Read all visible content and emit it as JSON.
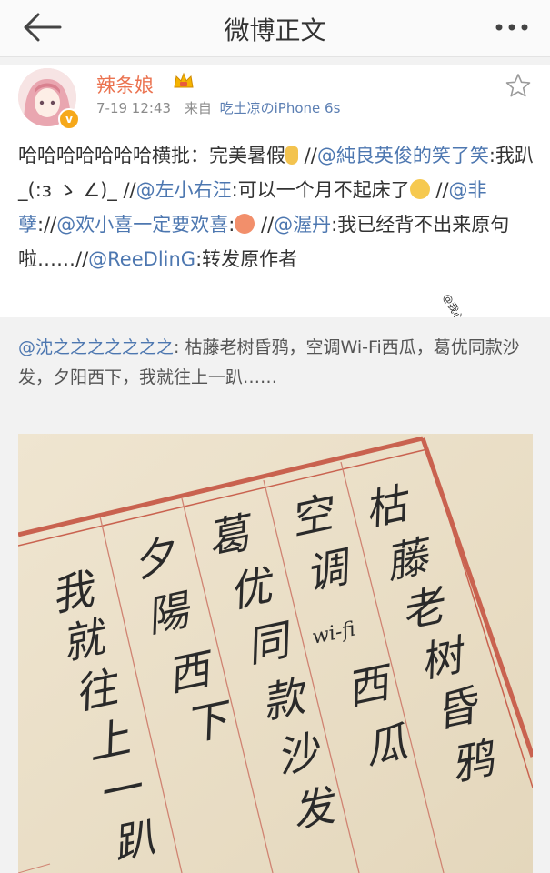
{
  "header": {
    "title": "微博正文"
  },
  "post": {
    "user": "辣条娘",
    "time": "7-19 12:43",
    "from_label": "来自",
    "source": "吃土凉のiPhone 6s",
    "segments": [
      {
        "text": "哈哈哈哈哈哈哈横批：完美暑假",
        "at": false
      },
      {
        "emoji": "thumb"
      },
      {
        "text": " //",
        "at": false
      },
      {
        "text": "@純良英俊的笑了笑",
        "at": true
      },
      {
        "text": ":我趴_(:з ゝ ∠)_ //",
        "at": false
      },
      {
        "text": "@左小右汪",
        "at": true
      },
      {
        "text": ":可以一个月不起床了",
        "at": false
      },
      {
        "emoji": "smile"
      },
      {
        "text": " //",
        "at": false
      },
      {
        "text": "@非孽",
        "at": true
      },
      {
        "text": "://",
        "at": false
      },
      {
        "text": "@欢小喜一定要欢喜",
        "at": true
      },
      {
        "text": ":",
        "at": false
      },
      {
        "emoji": "blush"
      },
      {
        "text": " //",
        "at": false
      },
      {
        "text": "@渥丹",
        "at": true
      },
      {
        "text": ":我已经背不出来原句啦……//",
        "at": false
      },
      {
        "text": "@ReeDlinG",
        "at": true
      },
      {
        "text": ":转发原作者",
        "at": false
      }
    ]
  },
  "watermark": "@我心病狂食乳控~",
  "repost": {
    "author": "@沈之之之之之之之",
    "text": ": 枯藤老树昏鸦，空调Wi-Fi西瓜，葛优同款沙发，夕阳西下，我就往上一趴……"
  },
  "photo": {
    "columns": [
      "枯藤老树昏鸦",
      "空调 wi-fi 西瓜",
      "葛优同款沙发",
      "夕阳西下",
      "我就往上一趴"
    ],
    "column_layout": [
      [
        [
          "枯",
          405,
          578
        ],
        [
          "藤",
          428,
          636
        ],
        [
          "老",
          445,
          690
        ],
        [
          "树",
          466,
          745
        ],
        [
          "昏",
          482,
          800
        ],
        [
          "鸦",
          500,
          858
        ]
      ],
      [
        [
          "空",
          323,
          588
        ],
        [
          "调",
          340,
          648
        ],
        [
          "wi-fi",
          345,
          708
        ],
        [
          "西",
          385,
          775
        ],
        [
          "瓜",
          405,
          840
        ]
      ],
      [
        [
          "葛",
          232,
          610
        ],
        [
          "优",
          256,
          668
        ],
        [
          "同",
          275,
          728
        ],
        [
          "款",
          292,
          790
        ],
        [
          "沙",
          308,
          850
        ],
        [
          "发",
          325,
          910
        ]
      ],
      [
        [
          "夕",
          150,
          635
        ],
        [
          "陽",
          165,
          695
        ],
        [
          "西",
          188,
          760
        ],
        [
          "下",
          208,
          815
        ]
      ],
      [
        [
          "我",
          60,
          672
        ],
        [
          "就",
          72,
          725
        ],
        [
          "往",
          86,
          780
        ],
        [
          "上",
          100,
          835
        ],
        [
          "一",
          112,
          890
        ],
        [
          "趴",
          128,
          945
        ]
      ]
    ]
  }
}
